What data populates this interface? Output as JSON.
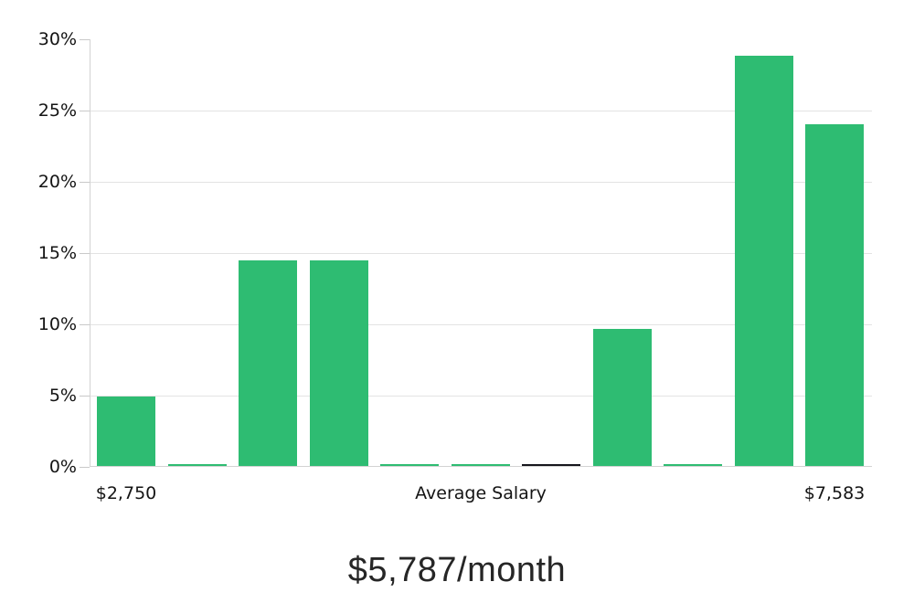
{
  "chart_data": {
    "type": "bar",
    "title": "$5,787/month",
    "xlabel": "",
    "ylabel": "",
    "ylim": [
      0,
      30
    ],
    "grid": true,
    "legend": null,
    "ytick_values": [
      0,
      5,
      10,
      15,
      20,
      25,
      30
    ],
    "ytick_labels": [
      "0%",
      "5%",
      "10%",
      "15%",
      "20%",
      "25%",
      "30%"
    ],
    "gridline_values": [
      5,
      10,
      15,
      20,
      25
    ],
    "xtick_labels": [
      "$2,750",
      "Average Salary",
      "$7,583"
    ],
    "bars": [
      {
        "value": 4.9,
        "color": "#2ebc72"
      },
      {
        "value": 0.1,
        "color": "#2ebc72"
      },
      {
        "value": 14.4,
        "color": "#2ebc72"
      },
      {
        "value": 14.4,
        "color": "#2ebc72"
      },
      {
        "value": 0.1,
        "color": "#2ebc72"
      },
      {
        "value": 0.1,
        "color": "#2ebc72"
      },
      {
        "value": 0.15,
        "color": "#16161c"
      },
      {
        "value": 9.6,
        "color": "#2ebc72"
      },
      {
        "value": 0.1,
        "color": "#2ebc72"
      },
      {
        "value": 28.8,
        "color": "#2ebc72"
      },
      {
        "value": 24.0,
        "color": "#2ebc72"
      }
    ],
    "colors": {
      "bar_green": "#2ebc72",
      "bar_dark": "#16161c",
      "gridline": "#e3e3e3",
      "axis_line": "#d2d2d2",
      "tick": "#c9c9c9",
      "axis_text": "#141414",
      "title_text": "#262626",
      "background": "#ffffff"
    }
  }
}
